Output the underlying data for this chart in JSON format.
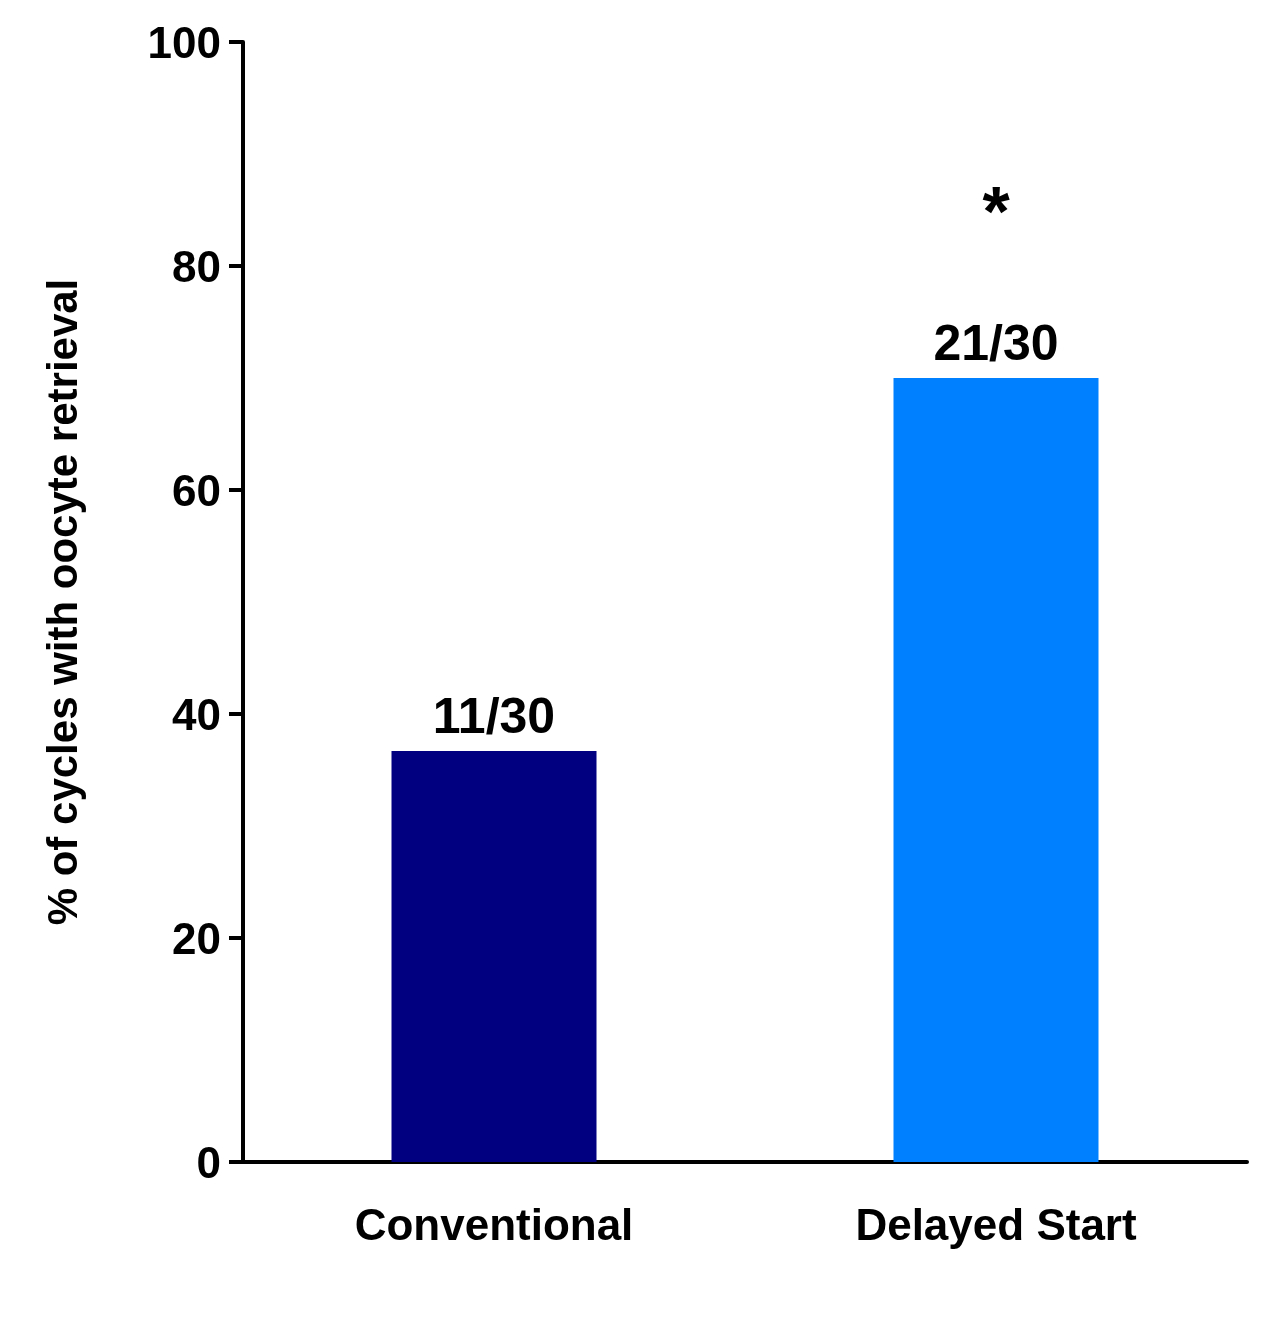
{
  "chart_data": {
    "type": "bar",
    "ylabel": "% of cycles with oocyte retrieval",
    "categories": [
      "Conventional",
      "Delayed Start"
    ],
    "values": [
      36.7,
      70
    ],
    "colors": [
      "#000080",
      "#0080ff"
    ],
    "value_labels": [
      "11/30",
      "21/30"
    ],
    "ylim": [
      0,
      100
    ],
    "yticks": [
      0,
      20,
      40,
      60,
      80,
      100
    ],
    "annotations": [
      "*"
    ]
  }
}
